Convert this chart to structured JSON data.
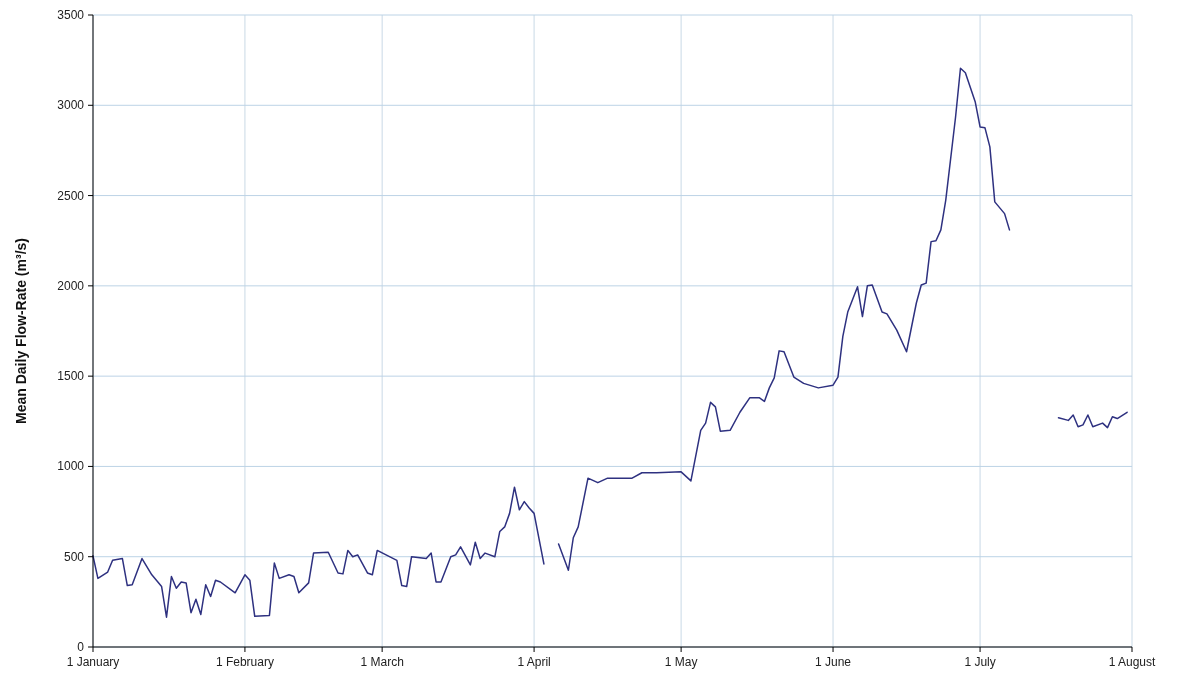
{
  "chart_data": {
    "type": "line",
    "ylabel": "Mean Daily Flow-Rate (m³/s)",
    "x": [
      "--01-01",
      "--01-02",
      "--01-04",
      "--01-05",
      "--01-07",
      "--01-08",
      "--01-09",
      "--01-11",
      "--01-13",
      "--01-15",
      "--01-16",
      "--01-17",
      "--01-18",
      "--01-19",
      "--01-20",
      "--01-21",
      "--01-22",
      "--01-23",
      "--01-24",
      "--01-25",
      "--01-26",
      "--01-27",
      "--01-30",
      "--02-01",
      "--02-02",
      "--02-03",
      "--02-06",
      "--02-07",
      "--02-08",
      "--02-10",
      "--02-11",
      "--02-12",
      "--02-14",
      "--02-15",
      "--02-18",
      "--02-20",
      "--02-21",
      "--02-22",
      "--02-23",
      "--02-24",
      "--02-26",
      "--02-27",
      "--02-28",
      "--03-04",
      "--03-05",
      "--03-06",
      "--03-07",
      "--03-10",
      "--03-11",
      "--03-12",
      "--03-13",
      "--03-15",
      "--03-16",
      "--03-17",
      "--03-19",
      "--03-20",
      "--03-21",
      "--03-22",
      "--03-24",
      "--03-25",
      "--03-26",
      "--03-27",
      "--03-28",
      "--03-29",
      "--03-30",
      "--03-31",
      "--04-01",
      "--04-03",
      "--04-04",
      "--04-06",
      "--04-08",
      "--04-09",
      "--04-10",
      "--04-12",
      "--04-14",
      "--04-16",
      "--04-21",
      "--04-23",
      "--04-26",
      "--05-01",
      "--05-03",
      "--05-05",
      "--05-06",
      "--05-07",
      "--05-08",
      "--05-09",
      "--05-11",
      "--05-13",
      "--05-15",
      "--05-17",
      "--05-18",
      "--05-19",
      "--05-20",
      "--05-21",
      "--05-22",
      "--05-24",
      "--05-26",
      "--05-29",
      "--06-01",
      "--06-02",
      "--06-03",
      "--06-04",
      "--06-06",
      "--06-07",
      "--06-08",
      "--06-09",
      "--06-11",
      "--06-12",
      "--06-14",
      "--06-16",
      "--06-18",
      "--06-19",
      "--06-20",
      "--06-21",
      "--06-22",
      "--06-23",
      "--06-24",
      "--06-26",
      "--06-27",
      "--06-28",
      "--06-30",
      "--07-01",
      "--07-02",
      "--07-03",
      "--07-04",
      "--07-06",
      "--07-07",
      "--07-10",
      "--07-17",
      "--07-19",
      "--07-20",
      "--07-21",
      "--07-22",
      "--07-23",
      "--07-24",
      "--07-26",
      "--07-27",
      "--07-28",
      "--07-29",
      "--07-31"
    ],
    "series": [
      {
        "color": "#2e3180",
        "values": [
          505,
          380,
          415,
          480,
          490,
          340,
          345,
          490,
          400,
          335,
          165,
          390,
          325,
          360,
          355,
          190,
          265,
          180,
          345,
          280,
          370,
          360,
          300,
          400,
          370,
          170,
          175,
          465,
          380,
          400,
          390,
          300,
          355,
          520,
          525,
          410,
          405,
          535,
          500,
          510,
          410,
          400,
          535,
          480,
          340,
          335,
          500,
          490,
          520,
          360,
          360,
          500,
          510,
          555,
          455,
          580,
          490,
          520,
          500,
          640,
          665,
          740,
          885,
          760,
          805,
          770,
          740,
          460,
          null,
          570,
          425,
          605,
          665,
          935,
          910,
          935,
          935,
          965,
          965,
          970,
          920,
          1200,
          1240,
          1355,
          1330,
          1195,
          1200,
          1300,
          1380,
          1380,
          1360,
          1435,
          1490,
          1640,
          1635,
          1495,
          1460,
          1435,
          1450,
          1495,
          1720,
          1855,
          1995,
          1830,
          2000,
          2005,
          1855,
          1845,
          1755,
          1635,
          1905,
          2005,
          2015,
          2245,
          2250,
          2310,
          2475,
          2935,
          3205,
          3180,
          3020,
          2880,
          2875,
          2770,
          2465,
          2400,
          2310,
          null,
          1270,
          1255,
          1285,
          1220,
          1230,
          1285,
          1220,
          1240,
          1215,
          1275,
          1265,
          1300
        ]
      }
    ],
    "xlim": [
      "--01-01",
      "--08-01"
    ],
    "xticks": [
      {
        "value": "--01-01",
        "label": "1 January"
      },
      {
        "value": "--02-01",
        "label": "1 February"
      },
      {
        "value": "--03-01",
        "label": "1 March"
      },
      {
        "value": "--04-01",
        "label": "1 April"
      },
      {
        "value": "--05-01",
        "label": "1 May"
      },
      {
        "value": "--06-01",
        "label": "1 June"
      },
      {
        "value": "--07-01",
        "label": "1 July"
      },
      {
        "value": "--08-01",
        "label": "1 August"
      }
    ],
    "ylim": [
      0,
      3500
    ],
    "yticks": [
      0,
      500,
      1000,
      1500,
      2000,
      2500,
      3000,
      3500
    ],
    "grid": true,
    "line_style": "solid"
  }
}
